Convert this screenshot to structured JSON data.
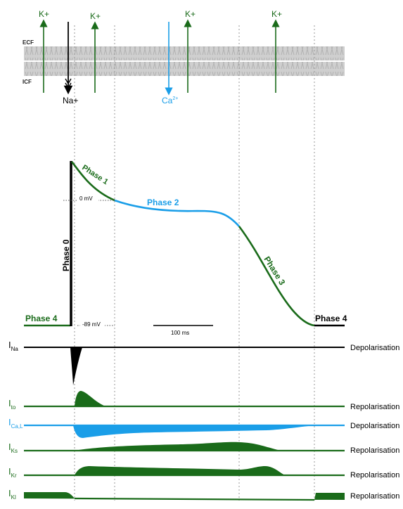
{
  "membrane": {
    "ecf_label": "ECF",
    "icf_label": "ICF"
  },
  "ions": {
    "k_label": "K+",
    "na_label": "Na+",
    "ca_label": "Ca",
    "ca_charge": "2+"
  },
  "action_potential": {
    "phase0": "Phase 0",
    "phase1": "Phase 1",
    "phase2": "Phase 2",
    "phase3": "Phase 3",
    "phase4_left": "Phase 4",
    "phase4_right": "Phase 4",
    "zero_mv": "0 mV",
    "rest_mv": "-89 mV",
    "scale_bar": "100 ms"
  },
  "currents": [
    {
      "main": "I",
      "sub": "Na",
      "effect": "Depolarisation",
      "color": "#000000"
    },
    {
      "main": "I",
      "sub": "to",
      "effect": "Repolarisation",
      "color": "#1a6b1a"
    },
    {
      "main": "I",
      "sub": "Ca,L",
      "effect": "Depolarisation",
      "color": "#1a9ee8"
    },
    {
      "main": "I",
      "sub": "Ks",
      "effect": "Repolarisation",
      "color": "#1a6b1a"
    },
    {
      "main": "I",
      "sub": "Kr",
      "effect": "Repolarisation",
      "color": "#1a6b1a"
    },
    {
      "main": "I",
      "sub": "Kl",
      "effect": "Repolarisation",
      "color": "#1a6b1a"
    }
  ],
  "colors": {
    "green": "#1a6b1a",
    "blue": "#1a9ee8",
    "black": "#000000",
    "membrane": "#c8c8c8"
  }
}
